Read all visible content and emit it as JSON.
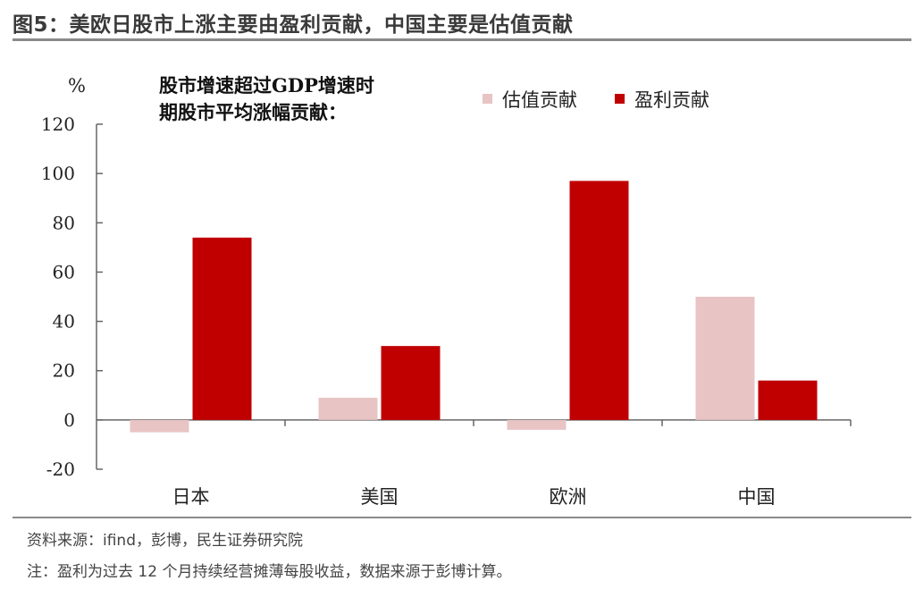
{
  "figure_title": "图5：美欧日股市上涨主要由盈利贡献，中国主要是估值贡献",
  "source": "资料来源：ifind，彭博，民生证券研究院",
  "note": "注：盈利为过去 12 个月持续经营摊薄每股收益，数据来源于彭博计算。",
  "chart_data": {
    "type": "bar",
    "title": "股市增速超过GDP增速时期股市平均涨幅贡献：",
    "title_lines": [
      "股市增速超过GDP增速时",
      "期股市平均涨幅贡献："
    ],
    "ylabel": "%",
    "xlabel": "",
    "ylim": [
      -20,
      120
    ],
    "yticks": [
      -20,
      0,
      20,
      40,
      60,
      80,
      100,
      120
    ],
    "categories": [
      "日本",
      "美国",
      "欧洲",
      "中国"
    ],
    "series": [
      {
        "name": "估值贡献",
        "color": "#e8c4c4",
        "values": [
          -5,
          9,
          -4,
          50
        ]
      },
      {
        "name": "盈利贡献",
        "color": "#c00000",
        "values": [
          74,
          30,
          97,
          16
        ]
      }
    ],
    "legend_position": "top-right",
    "grid": false
  }
}
